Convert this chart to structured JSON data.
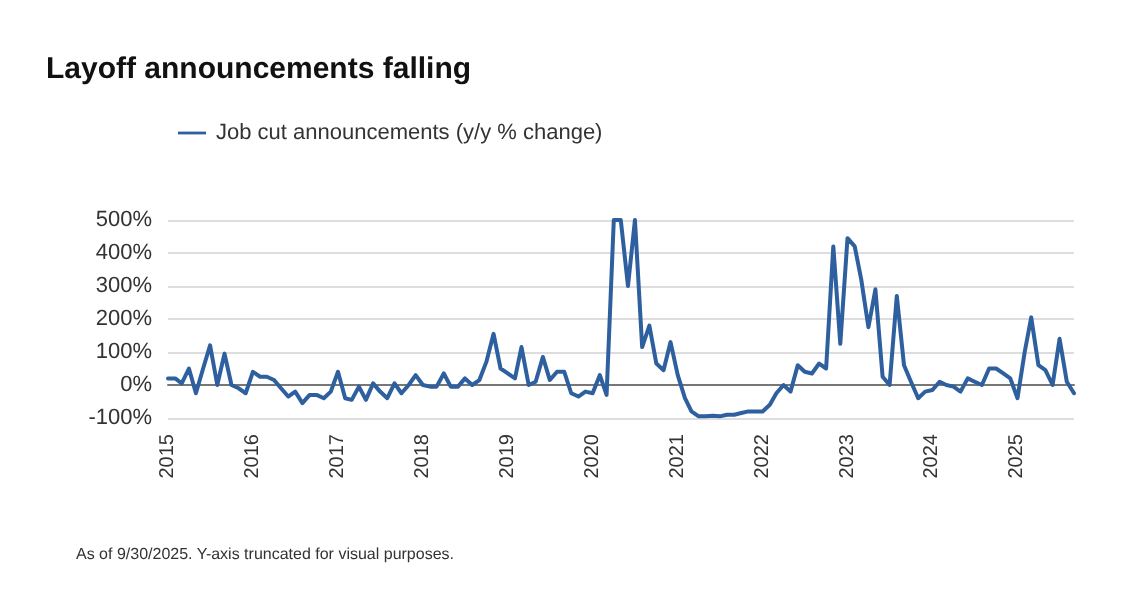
{
  "chart_data": {
    "type": "line",
    "title": "Layoff announcements falling",
    "annotations": [
      "As of 9/30/2025. Y-axis truncated for visual purposes."
    ],
    "x": [
      "2015-01",
      "2015-02",
      "2015-03",
      "2015-04",
      "2015-05",
      "2015-06",
      "2015-07",
      "2015-08",
      "2015-09",
      "2015-10",
      "2015-11",
      "2015-12",
      "2016-01",
      "2016-02",
      "2016-03",
      "2016-04",
      "2016-05",
      "2016-06",
      "2016-07",
      "2016-08",
      "2016-09",
      "2016-10",
      "2016-11",
      "2016-12",
      "2017-01",
      "2017-02",
      "2017-03",
      "2017-04",
      "2017-05",
      "2017-06",
      "2017-07",
      "2017-08",
      "2017-09",
      "2017-10",
      "2017-11",
      "2017-12",
      "2018-01",
      "2018-02",
      "2018-03",
      "2018-04",
      "2018-05",
      "2018-06",
      "2018-07",
      "2018-08",
      "2018-09",
      "2018-10",
      "2018-11",
      "2018-12",
      "2019-01",
      "2019-02",
      "2019-03",
      "2019-04",
      "2019-05",
      "2019-06",
      "2019-07",
      "2019-08",
      "2019-09",
      "2019-10",
      "2019-11",
      "2019-12",
      "2020-01",
      "2020-02",
      "2020-03",
      "2020-04",
      "2020-05",
      "2020-06",
      "2020-07",
      "2020-08",
      "2020-09",
      "2020-10",
      "2020-11",
      "2020-12",
      "2021-01",
      "2021-02",
      "2021-03",
      "2021-04",
      "2021-05",
      "2021-06",
      "2021-07",
      "2021-08",
      "2021-09",
      "2021-10",
      "2021-11",
      "2021-12",
      "2022-01",
      "2022-02",
      "2022-03",
      "2022-04",
      "2022-05",
      "2022-06",
      "2022-07",
      "2022-08",
      "2022-09",
      "2022-10",
      "2022-11",
      "2022-12",
      "2023-01",
      "2023-02",
      "2023-03",
      "2023-04",
      "2023-05",
      "2023-06",
      "2023-07",
      "2023-08",
      "2023-09",
      "2023-10",
      "2023-11",
      "2023-12",
      "2024-01",
      "2024-02",
      "2024-03",
      "2024-04",
      "2024-05",
      "2024-06",
      "2024-07",
      "2024-08",
      "2024-09",
      "2024-10",
      "2024-11",
      "2024-12",
      "2025-01",
      "2025-02",
      "2025-03",
      "2025-04",
      "2025-05",
      "2025-06",
      "2025-07",
      "2025-08",
      "2025-09"
    ],
    "series": [
      {
        "name": "Job cut announcements (y/y % change)",
        "color": "#2e5f9e",
        "values": [
          20,
          20,
          5,
          50,
          -25,
          50,
          120,
          0,
          95,
          0,
          -10,
          -25,
          40,
          25,
          25,
          15,
          -10,
          -35,
          -20,
          -55,
          -30,
          -30,
          -40,
          -20,
          40,
          -40,
          -45,
          -5,
          -45,
          5,
          -20,
          -40,
          5,
          -25,
          0,
          30,
          0,
          -5,
          -5,
          35,
          -5,
          -5,
          20,
          0,
          15,
          70,
          155,
          50,
          35,
          20,
          115,
          0,
          10,
          85,
          15,
          40,
          40,
          -25,
          -35,
          -20,
          -25,
          30,
          -30,
          500,
          500,
          300,
          500,
          115,
          180,
          65,
          45,
          130,
          30,
          -40,
          -80,
          -95,
          -95,
          -93,
          -95,
          -90,
          -90,
          -85,
          -80,
          -80,
          -80,
          -60,
          -25,
          0,
          -20,
          60,
          40,
          35,
          65,
          50,
          420,
          125,
          445,
          420,
          320,
          175,
          290,
          25,
          0,
          270,
          60,
          10,
          -40,
          -20,
          -15,
          10,
          0,
          -5,
          -20,
          20,
          10,
          0,
          50,
          50,
          35,
          20,
          -40,
          100,
          205,
          60,
          45,
          0,
          140,
          10,
          -25
        ]
      }
    ],
    "xlim": [
      "2015-01",
      "2025-09"
    ],
    "xticks": [
      "2015",
      "2016",
      "2017",
      "2018",
      "2019",
      "2020",
      "2021",
      "2022",
      "2023",
      "2024",
      "2025"
    ],
    "ylim": [
      -100,
      500
    ],
    "yticks": [
      {
        "value": -100,
        "label": "-100%"
      },
      {
        "value": 0,
        "label": "0%"
      },
      {
        "value": 100,
        "label": "100%"
      },
      {
        "value": 200,
        "label": "200%"
      },
      {
        "value": 300,
        "label": "300%"
      },
      {
        "value": 400,
        "label": "400%"
      },
      {
        "value": 500,
        "label": "500%"
      }
    ],
    "grid": "y",
    "legend": "top left",
    "marker": "none",
    "line_style": "solid"
  }
}
